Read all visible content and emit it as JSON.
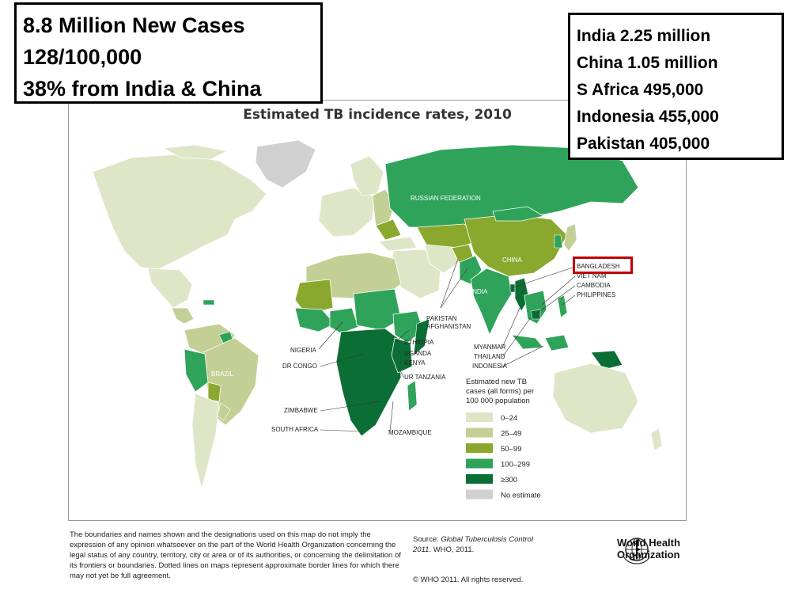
{
  "callout_left": {
    "lines": [
      "8.8 Million New Cases",
      "128/100,000",
      "38% from India & China"
    ]
  },
  "callout_right": {
    "lines": [
      "India 2.25 million",
      "China 1.05 million",
      "S Africa 495,000",
      "Indonesia 455,000",
      "Pakistan 405,000"
    ]
  },
  "map": {
    "title": "Estimated TB incidence rates, 2010",
    "labels": {
      "russia": "RUSSIAN FEDERATION",
      "china": "CHINA",
      "india": "INDIA",
      "brazil": "BRAZIL",
      "bangladesh": "BANGLADESH",
      "vietnam": "VIET NAM",
      "cambodia": "CAMBODIA",
      "philippines": "PHILIPPINES",
      "pakistan": "PAKISTAN",
      "afghanistan": "AFGHANISTAN",
      "ethiopia": "ETHIOPIA",
      "uganda": "UGANDA",
      "kenya": "KENYA",
      "tanzania": "UR TANZANIA",
      "nigeria": "NIGERIA",
      "drcongo": "DR CONGO",
      "zimbabwe": "ZIMBABWE",
      "south_africa": "SOUTH AFRICA",
      "mozambique": "MOZAMBIQUE",
      "myanmar": "MYANMAR",
      "thailand": "THAILAND",
      "indonesia": "INDONESIA"
    },
    "legend": {
      "title_lines": [
        "Estimated new TB",
        "cases (all forms) per",
        "100 000 population"
      ],
      "items": [
        {
          "label": "0–24",
          "color": "#dfe6c8"
        },
        {
          "label": "25–49",
          "color": "#c3cf95"
        },
        {
          "label": "50–99",
          "color": "#8aa82e"
        },
        {
          "label": "100–299",
          "color": "#2fa35a"
        },
        {
          "label": "≥300",
          "color": "#0b6e34"
        },
        {
          "label": "No estimate",
          "color": "#d0d0d0"
        }
      ]
    }
  },
  "footer": {
    "disclaimer": "The boundaries and names shown and the designations used on this map do not imply the expression of any opinion whatsoever on the part of the World Health Organization concerning the legal status of any country, territory, city or area or of its authorities, or concerning the delimitation of its frontiers or boundaries. Dotted lines on maps represent approximate border lines for which there may not yet be full agreement.",
    "source_prefix": "Source: ",
    "source_title": "Global Tuberculosis Control 2011",
    "source_suffix": ". WHO, 2011.",
    "copyright": "© WHO 2011. All rights reserved.",
    "org_line1": "World Health",
    "org_line2": "Organization"
  }
}
